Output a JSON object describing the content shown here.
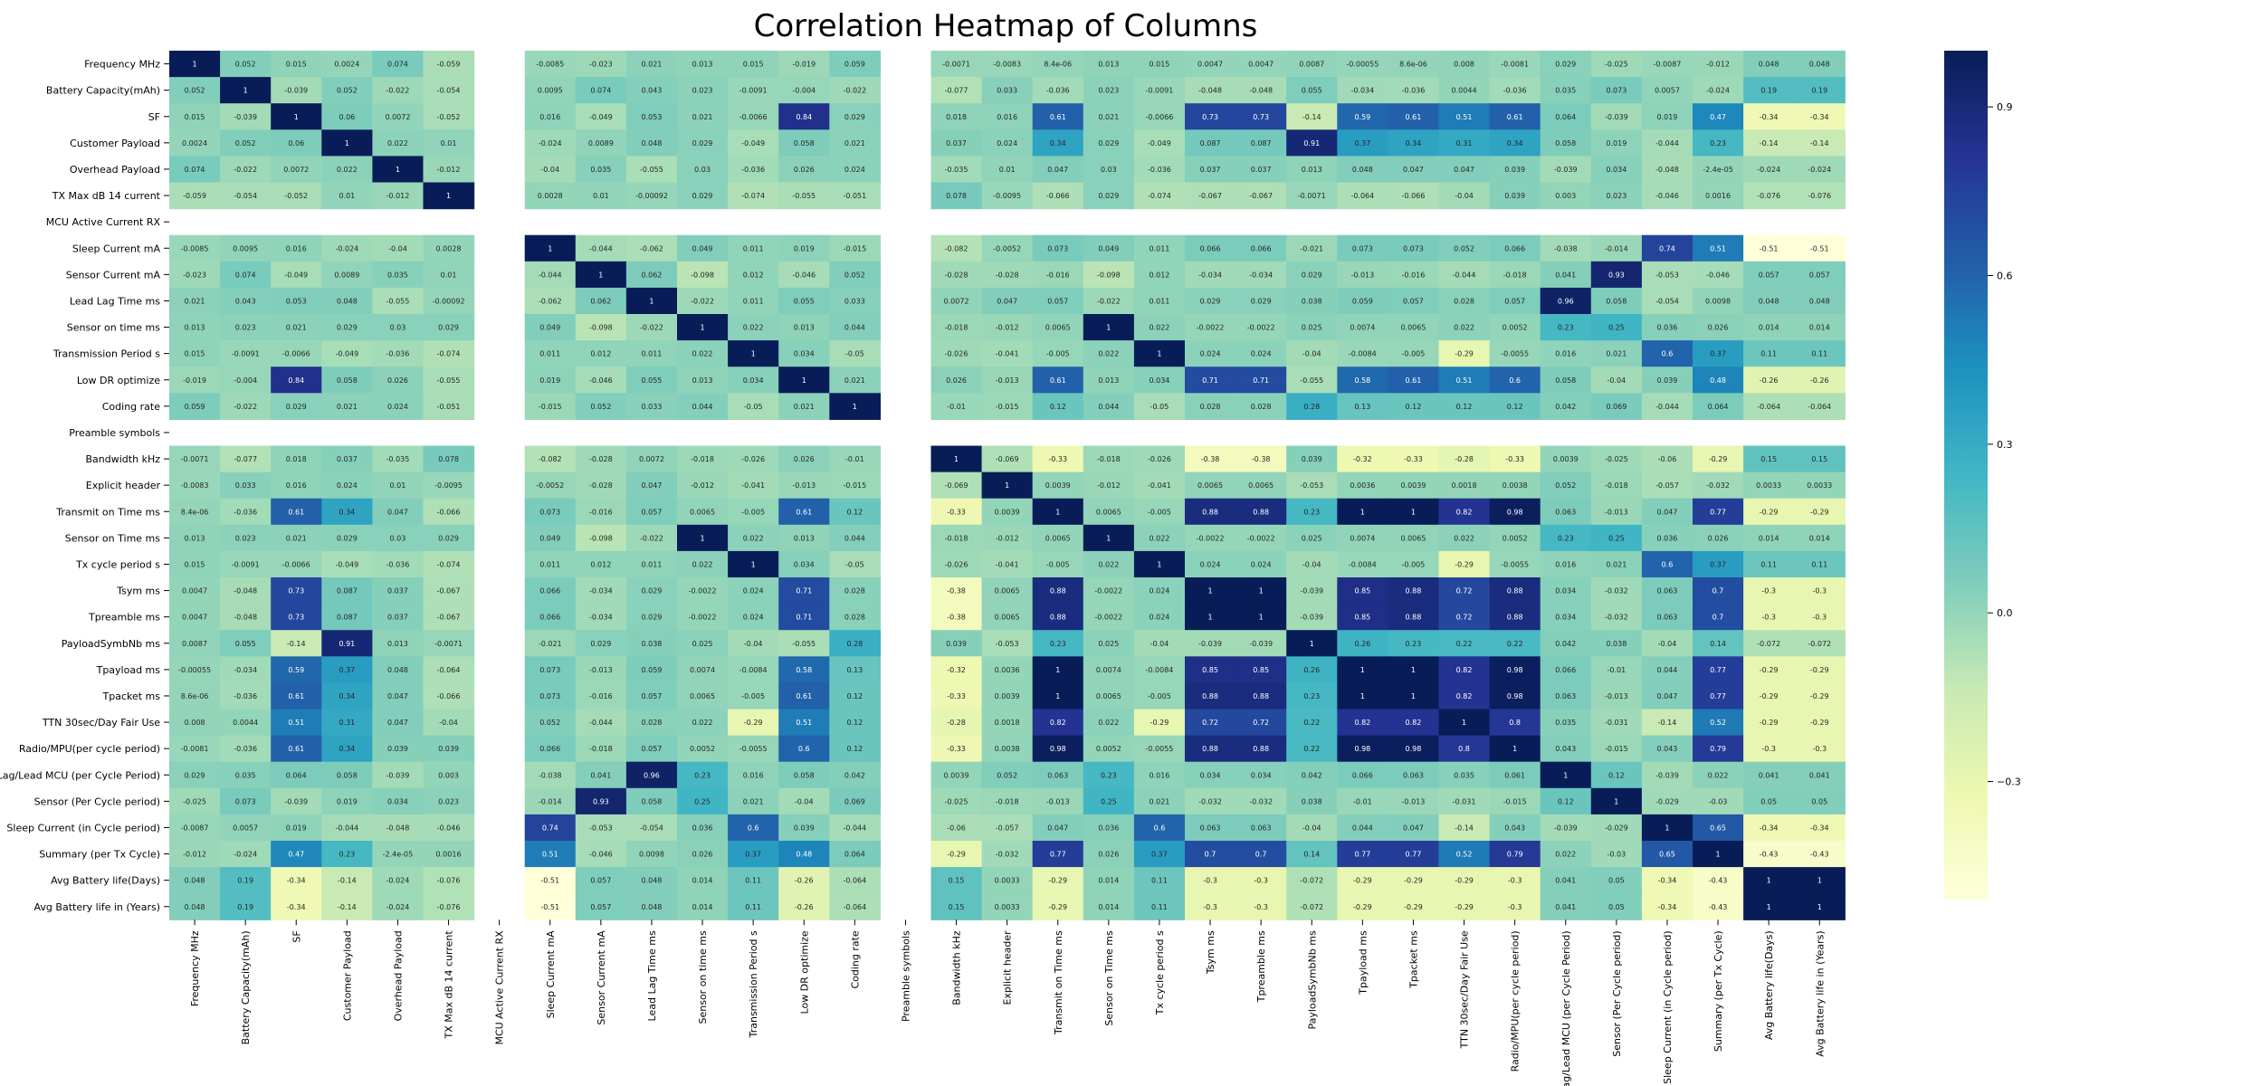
{
  "chart_data": {
    "type": "heatmap",
    "title": "Correlation Heatmap of Columns",
    "labels": [
      "Frequency MHz",
      "Battery Capacity(mAh)",
      "SF",
      "Customer Payload",
      "Overhead Payload",
      "TX Max dB 14 current",
      "MCU Active  Current  RX",
      "Sleep Current mA",
      "Sensor Current mA",
      "Lead Lag Time ms",
      "Sensor on time ms",
      "Transmission Period s",
      "Low DR optimize",
      "Coding rate",
      "Preamble symbols",
      "Bandwidth kHz",
      "Explicit header",
      "Transmit on Time ms",
      "Sensor on Time ms",
      "Tx cycle period s",
      "Tsym ms",
      "Tpreamble ms",
      "PayloadSymbNb ms",
      "Tpayload ms",
      "Tpacket ms",
      "TTN 30sec/Day Fair Use",
      "Radio/MPU(per cycle period)",
      "Lag/Lead MCU (per Cycle Period)",
      "Sensor (Per Cycle period)",
      "Sleep Current (in Cycle period)",
      "Summary (per Tx Cycle)",
      "Avg Battery life(Days)",
      "Avg Battery life in (Years)"
    ],
    "matrix": [
      [
        "1",
        "0.052",
        "0.015",
        "0.0024",
        "0.074",
        "-0.059",
        null,
        "-0.0085",
        "-0.023",
        "0.021",
        "0.013",
        "0.015",
        "-0.019",
        "0.059",
        null,
        "-0.0071",
        "-0.0083",
        "8.4e-06",
        "0.013",
        "0.015",
        "0.0047",
        "0.0047",
        "0.0087",
        "-0.00055",
        "8.6e-06",
        "0.008",
        "-0.0081",
        "0.029",
        "-0.025",
        "-0.0087",
        "-0.012",
        "0.048",
        "0.048"
      ],
      [
        "0.052",
        "1",
        "-0.039",
        "0.052",
        "-0.022",
        "-0.054",
        null,
        "0.0095",
        "0.074",
        "0.043",
        "0.023",
        "-0.0091",
        "-0.004",
        "-0.022",
        null,
        "-0.077",
        "0.033",
        "-0.036",
        "0.023",
        "-0.0091",
        "-0.048",
        "-0.048",
        "0.055",
        "-0.034",
        "-0.036",
        "0.0044",
        "-0.036",
        "0.035",
        "0.073",
        "0.0057",
        "-0.024",
        "0.19",
        "0.19"
      ],
      [
        "0.015",
        "-0.039",
        "1",
        "0.06",
        "0.0072",
        "-0.052",
        null,
        "0.016",
        "-0.049",
        "0.053",
        "0.021",
        "-0.0066",
        "0.84",
        "0.029",
        null,
        "0.018",
        "0.016",
        "0.61",
        "0.021",
        "-0.0066",
        "0.73",
        "0.73",
        "-0.14",
        "0.59",
        "0.61",
        "0.51",
        "0.61",
        "0.064",
        "-0.039",
        "0.019",
        "0.47",
        "-0.34",
        "-0.34"
      ],
      [
        "0.0024",
        "0.052",
        "0.06",
        "1",
        "0.022",
        "0.01",
        null,
        "-0.024",
        "0.0089",
        "0.048",
        "0.029",
        "-0.049",
        "0.058",
        "0.021",
        null,
        "0.037",
        "0.024",
        "0.34",
        "0.029",
        "-0.049",
        "0.087",
        "0.087",
        "0.91",
        "0.37",
        "0.34",
        "0.31",
        "0.34",
        "0.058",
        "0.019",
        "-0.044",
        "0.23",
        "-0.14",
        "-0.14"
      ],
      [
        "0.074",
        "-0.022",
        "0.0072",
        "0.022",
        "1",
        "-0.012",
        null,
        "-0.04",
        "0.035",
        "-0.055",
        "0.03",
        "-0.036",
        "0.026",
        "0.024",
        null,
        "-0.035",
        "0.01",
        "0.047",
        "0.03",
        "-0.036",
        "0.037",
        "0.037",
        "0.013",
        "0.048",
        "0.047",
        "0.047",
        "0.039",
        "-0.039",
        "0.034",
        "-0.048",
        "-2.4e-05",
        "-0.024",
        "-0.024"
      ],
      [
        "-0.059",
        "-0.054",
        "-0.052",
        "0.01",
        "-0.012",
        "1",
        null,
        "0.0028",
        "0.01",
        "-0.00092",
        "0.029",
        "-0.074",
        "-0.055",
        "-0.051",
        null,
        "0.078",
        "-0.0095",
        "-0.066",
        "0.029",
        "-0.074",
        "-0.067",
        "-0.067",
        "-0.0071",
        "-0.064",
        "-0.066",
        "-0.04",
        "0.039",
        "0.003",
        "0.023",
        "-0.046",
        "0.0016",
        "-0.076",
        "-0.076"
      ],
      [
        null,
        null,
        null,
        null,
        null,
        null,
        null,
        null,
        null,
        null,
        null,
        null,
        null,
        null,
        null,
        null,
        null,
        null,
        null,
        null,
        null,
        null,
        null,
        null,
        null,
        null,
        null,
        null,
        null,
        null,
        null,
        null,
        null
      ],
      [
        "-0.0085",
        "0.0095",
        "0.016",
        "-0.024",
        "-0.04",
        "0.0028",
        null,
        "1",
        "-0.044",
        "-0.062",
        "0.049",
        "0.011",
        "0.019",
        "-0.015",
        null,
        "-0.082",
        "-0.0052",
        "0.073",
        "0.049",
        "0.011",
        "0.066",
        "0.066",
        "-0.021",
        "0.073",
        "0.073",
        "0.052",
        "0.066",
        "-0.038",
        "-0.014",
        "0.74",
        "0.51",
        "-0.51",
        "-0.51"
      ],
      [
        "-0.023",
        "0.074",
        "-0.049",
        "0.0089",
        "0.035",
        "0.01",
        null,
        "-0.044",
        "1",
        "0.062",
        "-0.098",
        "0.012",
        "-0.046",
        "0.052",
        null,
        "-0.028",
        "-0.028",
        "-0.016",
        "-0.098",
        "0.012",
        "-0.034",
        "-0.034",
        "0.029",
        "-0.013",
        "-0.016",
        "-0.044",
        "-0.018",
        "0.041",
        "0.93",
        "-0.053",
        "-0.046",
        "0.057",
        "0.057"
      ],
      [
        "0.021",
        "0.043",
        "0.053",
        "0.048",
        "-0.055",
        "-0.00092",
        null,
        "-0.062",
        "0.062",
        "1",
        "-0.022",
        "0.011",
        "0.055",
        "0.033",
        null,
        "0.0072",
        "0.047",
        "0.057",
        "-0.022",
        "0.011",
        "0.029",
        "0.029",
        "0.038",
        "0.059",
        "0.057",
        "0.028",
        "0.057",
        "0.96",
        "0.058",
        "-0.054",
        "0.0098",
        "0.048",
        "0.048"
      ],
      [
        "0.013",
        "0.023",
        "0.021",
        "0.029",
        "0.03",
        "0.029",
        null,
        "0.049",
        "-0.098",
        "-0.022",
        "1",
        "0.022",
        "0.013",
        "0.044",
        null,
        "-0.018",
        "-0.012",
        "0.0065",
        "1",
        "0.022",
        "-0.0022",
        "-0.0022",
        "0.025",
        "0.0074",
        "0.0065",
        "0.022",
        "0.0052",
        "0.23",
        "0.25",
        "0.036",
        "0.026",
        "0.014",
        "0.014"
      ],
      [
        "0.015",
        "-0.0091",
        "-0.0066",
        "-0.049",
        "-0.036",
        "-0.074",
        null,
        "0.011",
        "0.012",
        "0.011",
        "0.022",
        "1",
        "0.034",
        "-0.05",
        null,
        "-0.026",
        "-0.041",
        "-0.005",
        "0.022",
        "1",
        "0.024",
        "0.024",
        "-0.04",
        "-0.0084",
        "-0.005",
        "-0.29",
        "-0.0055",
        "0.016",
        "0.021",
        "0.6",
        "0.37",
        "0.11",
        "0.11"
      ],
      [
        "-0.019",
        "-0.004",
        "0.84",
        "0.058",
        "0.026",
        "-0.055",
        null,
        "0.019",
        "-0.046",
        "0.055",
        "0.013",
        "0.034",
        "1",
        "0.021",
        null,
        "0.026",
        "-0.013",
        "0.61",
        "0.013",
        "0.034",
        "0.71",
        "0.71",
        "-0.055",
        "0.58",
        "0.61",
        "0.51",
        "0.6",
        "0.058",
        "-0.04",
        "0.039",
        "0.48",
        "-0.26",
        "-0.26"
      ],
      [
        "0.059",
        "-0.022",
        "0.029",
        "0.021",
        "0.024",
        "-0.051",
        null,
        "-0.015",
        "0.052",
        "0.033",
        "0.044",
        "-0.05",
        "0.021",
        "1",
        null,
        "-0.01",
        "-0.015",
        "0.12",
        "0.044",
        "-0.05",
        "0.028",
        "0.028",
        "0.28",
        "0.13",
        "0.12",
        "0.12",
        "0.12",
        "0.042",
        "0.069",
        "-0.044",
        "0.064",
        "-0.064",
        "-0.064"
      ],
      [
        null,
        null,
        null,
        null,
        null,
        null,
        null,
        null,
        null,
        null,
        null,
        null,
        null,
        null,
        null,
        null,
        null,
        null,
        null,
        null,
        null,
        null,
        null,
        null,
        null,
        null,
        null,
        null,
        null,
        null,
        null,
        null,
        null
      ],
      [
        "-0.0071",
        "-0.077",
        "0.018",
        "0.037",
        "-0.035",
        "0.078",
        null,
        "-0.082",
        "-0.028",
        "0.0072",
        "-0.018",
        "-0.026",
        "0.026",
        "-0.01",
        null,
        "1",
        "-0.069",
        "-0.33",
        "-0.018",
        "-0.026",
        "-0.38",
        "-0.38",
        "0.039",
        "-0.32",
        "-0.33",
        "-0.28",
        "-0.33",
        "0.0039",
        "-0.025",
        "-0.06",
        "-0.29",
        "0.15",
        "0.15"
      ],
      [
        "-0.0083",
        "0.033",
        "0.016",
        "0.024",
        "0.01",
        "-0.0095",
        null,
        "-0.0052",
        "-0.028",
        "0.047",
        "-0.012",
        "-0.041",
        "-0.013",
        "-0.015",
        null,
        "-0.069",
        "1",
        "0.0039",
        "-0.012",
        "-0.041",
        "0.0065",
        "0.0065",
        "-0.053",
        "0.0036",
        "0.0039",
        "0.0018",
        "0.0038",
        "0.052",
        "-0.018",
        "-0.057",
        "-0.032",
        "0.0033",
        "0.0033"
      ],
      [
        "8.4e-06",
        "-0.036",
        "0.61",
        "0.34",
        "0.047",
        "-0.066",
        null,
        "0.073",
        "-0.016",
        "0.057",
        "0.0065",
        "-0.005",
        "0.61",
        "0.12",
        null,
        "-0.33",
        "0.0039",
        "1",
        "0.0065",
        "-0.005",
        "0.88",
        "0.88",
        "0.23",
        "1",
        "1",
        "0.82",
        "0.98",
        "0.063",
        "-0.013",
        "0.047",
        "0.77",
        "-0.29",
        "-0.29"
      ],
      [
        "0.013",
        "0.023",
        "0.021",
        "0.029",
        "0.03",
        "0.029",
        null,
        "0.049",
        "-0.098",
        "-0.022",
        "1",
        "0.022",
        "0.013",
        "0.044",
        null,
        "-0.018",
        "-0.012",
        "0.0065",
        "1",
        "0.022",
        "-0.0022",
        "-0.0022",
        "0.025",
        "0.0074",
        "0.0065",
        "0.022",
        "0.0052",
        "0.23",
        "0.25",
        "0.036",
        "0.026",
        "0.014",
        "0.014"
      ],
      [
        "0.015",
        "-0.0091",
        "-0.0066",
        "-0.049",
        "-0.036",
        "-0.074",
        null,
        "0.011",
        "0.012",
        "0.011",
        "0.022",
        "1",
        "0.034",
        "-0.05",
        null,
        "-0.026",
        "-0.041",
        "-0.005",
        "0.022",
        "1",
        "0.024",
        "0.024",
        "-0.04",
        "-0.0084",
        "-0.005",
        "-0.29",
        "-0.0055",
        "0.016",
        "0.021",
        "0.6",
        "0.37",
        "0.11",
        "0.11"
      ],
      [
        "0.0047",
        "-0.048",
        "0.73",
        "0.087",
        "0.037",
        "-0.067",
        null,
        "0.066",
        "-0.034",
        "0.029",
        "-0.0022",
        "0.024",
        "0.71",
        "0.028",
        null,
        "-0.38",
        "0.0065",
        "0.88",
        "-0.0022",
        "0.024",
        "1",
        "1",
        "-0.039",
        "0.85",
        "0.88",
        "0.72",
        "0.88",
        "0.034",
        "-0.032",
        "0.063",
        "0.7",
        "-0.3",
        "-0.3"
      ],
      [
        "0.0047",
        "-0.048",
        "0.73",
        "0.087",
        "0.037",
        "-0.067",
        null,
        "0.066",
        "-0.034",
        "0.029",
        "-0.0022",
        "0.024",
        "0.71",
        "0.028",
        null,
        "-0.38",
        "0.0065",
        "0.88",
        "-0.0022",
        "0.024",
        "1",
        "1",
        "-0.039",
        "0.85",
        "0.88",
        "0.72",
        "0.88",
        "0.034",
        "-0.032",
        "0.063",
        "0.7",
        "-0.3",
        "-0.3"
      ],
      [
        "0.0087",
        "0.055",
        "-0.14",
        "0.91",
        "0.013",
        "-0.0071",
        null,
        "-0.021",
        "0.029",
        "0.038",
        "0.025",
        "-0.04",
        "-0.055",
        "0.28",
        null,
        "0.039",
        "-0.053",
        "0.23",
        "0.025",
        "-0.04",
        "-0.039",
        "-0.039",
        "1",
        "0.26",
        "0.23",
        "0.22",
        "0.22",
        "0.042",
        "0.038",
        "-0.04",
        "0.14",
        "-0.072",
        "-0.072"
      ],
      [
        "-0.00055",
        "-0.034",
        "0.59",
        "0.37",
        "0.048",
        "-0.064",
        null,
        "0.073",
        "-0.013",
        "0.059",
        "0.0074",
        "-0.0084",
        "0.58",
        "0.13",
        null,
        "-0.32",
        "0.0036",
        "1",
        "0.0074",
        "-0.0084",
        "0.85",
        "0.85",
        "0.26",
        "1",
        "1",
        "0.82",
        "0.98",
        "0.066",
        "-0.01",
        "0.044",
        "0.77",
        "-0.29",
        "-0.29"
      ],
      [
        "8.6e-06",
        "-0.036",
        "0.61",
        "0.34",
        "0.047",
        "-0.066",
        null,
        "0.073",
        "-0.016",
        "0.057",
        "0.0065",
        "-0.005",
        "0.61",
        "0.12",
        null,
        "-0.33",
        "0.0039",
        "1",
        "0.0065",
        "-0.005",
        "0.88",
        "0.88",
        "0.23",
        "1",
        "1",
        "0.82",
        "0.98",
        "0.063",
        "-0.013",
        "0.047",
        "0.77",
        "-0.29",
        "-0.29"
      ],
      [
        "0.008",
        "0.0044",
        "0.51",
        "0.31",
        "0.047",
        "-0.04",
        null,
        "0.052",
        "-0.044",
        "0.028",
        "0.022",
        "-0.29",
        "0.51",
        "0.12",
        null,
        "-0.28",
        "0.0018",
        "0.82",
        "0.022",
        "-0.29",
        "0.72",
        "0.72",
        "0.22",
        "0.82",
        "0.82",
        "1",
        "0.8",
        "0.035",
        "-0.031",
        "-0.14",
        "0.52",
        "-0.29",
        "-0.29"
      ],
      [
        "-0.0081",
        "-0.036",
        "0.61",
        "0.34",
        "0.039",
        "0.039",
        null,
        "0.066",
        "-0.018",
        "0.057",
        "0.0052",
        "-0.0055",
        "0.6",
        "0.12",
        null,
        "-0.33",
        "0.0038",
        "0.98",
        "0.0052",
        "-0.0055",
        "0.88",
        "0.88",
        "0.22",
        "0.98",
        "0.98",
        "0.8",
        "1",
        "0.043",
        "-0.015",
        "0.043",
        "0.79",
        "-0.3",
        "-0.3"
      ],
      [
        "0.029",
        "0.035",
        "0.064",
        "0.058",
        "-0.039",
        "0.003",
        null,
        "-0.038",
        "0.041",
        "0.96",
        "0.23",
        "0.016",
        "0.058",
        "0.042",
        null,
        "0.0039",
        "0.052",
        "0.063",
        "0.23",
        "0.016",
        "0.034",
        "0.034",
        "0.042",
        "0.066",
        "0.063",
        "0.035",
        "0.061",
        "1",
        "0.12",
        "-0.039",
        "0.022",
        "0.041",
        "0.041"
      ],
      [
        "-0.025",
        "0.073",
        "-0.039",
        "0.019",
        "0.034",
        "0.023",
        null,
        "-0.014",
        "0.93",
        "0.058",
        "0.25",
        "0.021",
        "-0.04",
        "0.069",
        null,
        "-0.025",
        "-0.018",
        "-0.013",
        "0.25",
        "0.021",
        "-0.032",
        "-0.032",
        "0.038",
        "-0.01",
        "-0.013",
        "-0.031",
        "-0.015",
        "0.12",
        "1",
        "-0.029",
        "-0.03",
        "0.05",
        "0.05"
      ],
      [
        "-0.0087",
        "0.0057",
        "0.019",
        "-0.044",
        "-0.048",
        "-0.046",
        null,
        "0.74",
        "-0.053",
        "-0.054",
        "0.036",
        "0.6",
        "0.039",
        "-0.044",
        null,
        "-0.06",
        "-0.057",
        "0.047",
        "0.036",
        "0.6",
        "0.063",
        "0.063",
        "-0.04",
        "0.044",
        "0.047",
        "-0.14",
        "0.043",
        "-0.039",
        "-0.029",
        "1",
        "0.65",
        "-0.34",
        "-0.34"
      ],
      [
        "-0.012",
        "-0.024",
        "0.47",
        "0.23",
        "-2.4e-05",
        "0.0016",
        null,
        "0.51",
        "-0.046",
        "0.0098",
        "0.026",
        "0.37",
        "0.48",
        "0.064",
        null,
        "-0.29",
        "-0.032",
        "0.77",
        "0.026",
        "0.37",
        "0.7",
        "0.7",
        "0.14",
        "0.77",
        "0.77",
        "0.52",
        "0.79",
        "0.022",
        "-0.03",
        "0.65",
        "1",
        "-0.43",
        "-0.43"
      ],
      [
        "0.048",
        "0.19",
        "-0.34",
        "-0.14",
        "-0.024",
        "-0.076",
        null,
        "-0.51",
        "0.057",
        "0.048",
        "0.014",
        "0.11",
        "-0.26",
        "-0.064",
        null,
        "0.15",
        "0.0033",
        "-0.29",
        "0.014",
        "0.11",
        "-0.3",
        "-0.3",
        "-0.072",
        "-0.29",
        "-0.29",
        "-0.29",
        "-0.3",
        "0.041",
        "0.05",
        "-0.34",
        "-0.43",
        "1",
        "1"
      ],
      [
        "0.048",
        "0.19",
        "-0.34",
        "-0.14",
        "-0.024",
        "-0.076",
        null,
        "-0.51",
        "0.057",
        "0.048",
        "0.014",
        "0.11",
        "-0.26",
        "-0.064",
        null,
        "0.15",
        "0.0033",
        "-0.29",
        "0.014",
        "0.11",
        "-0.3",
        "-0.3",
        "-0.072",
        "-0.29",
        "-0.29",
        "-0.29",
        "-0.3",
        "0.041",
        "0.05",
        "-0.34",
        "-0.43",
        "1",
        "1"
      ]
    ],
    "colormap": "YlGnBu",
    "vmin": -0.51,
    "vmax": 1,
    "colorbar_ticks": [
      "0.9",
      "0.6",
      "0.3",
      "0.0",
      "−0.3"
    ],
    "colorbar_tick_values": [
      0.9,
      0.6,
      0.3,
      0.0,
      -0.3
    ]
  }
}
